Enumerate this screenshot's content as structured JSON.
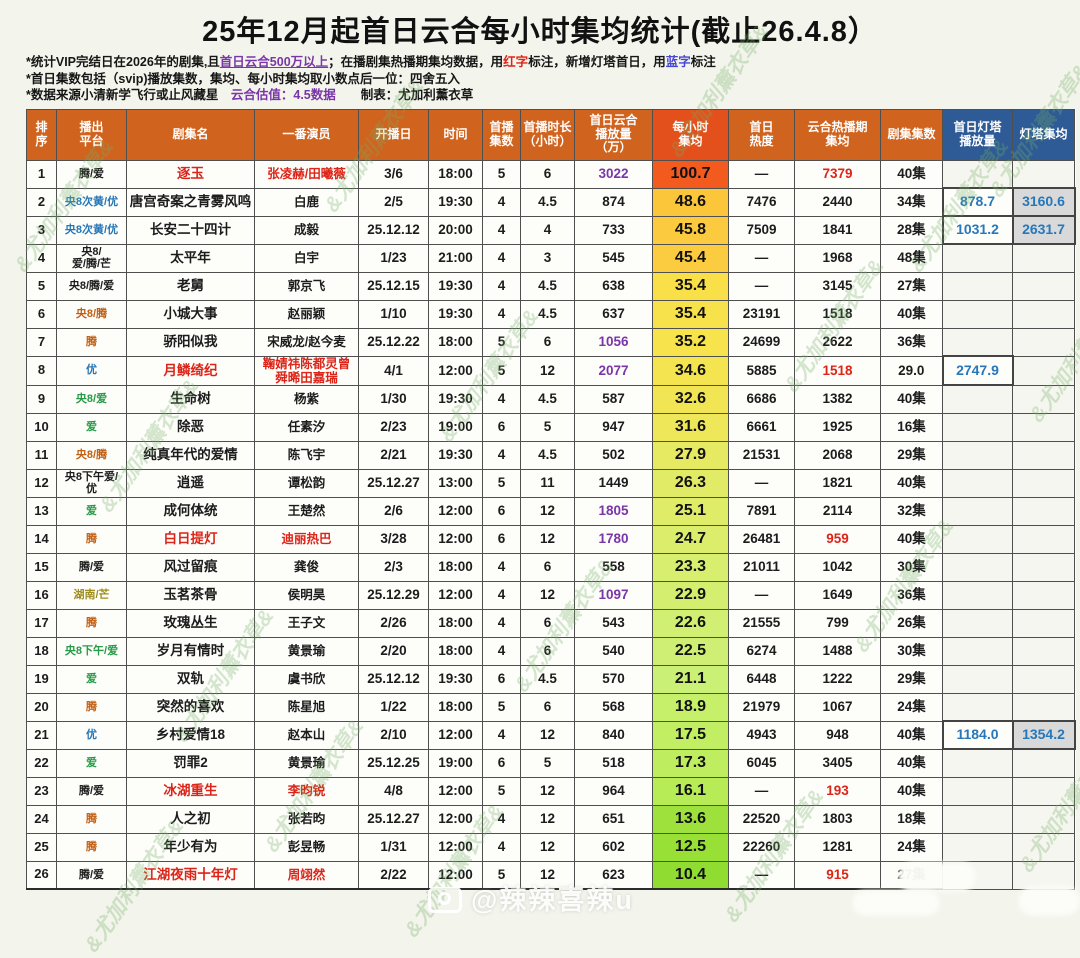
{
  "title": "25年12月起首日云合每小时集均统计(截止26.4.8）",
  "notes": [
    {
      "segments": [
        {
          "text": "*统计VIP完结日在2026年的剧集,且"
        },
        {
          "text": "首日云合500万以上",
          "color": "purple",
          "underline": true
        },
        {
          "text": "；在播剧集热播期集均数据，用"
        },
        {
          "text": "红字",
          "color": "red"
        },
        {
          "text": "标注，新增灯塔首日，用"
        },
        {
          "text": "蓝字",
          "color": "blue"
        },
        {
          "text": "标注"
        }
      ]
    },
    {
      "segments": [
        {
          "text": "*首日集数包括（svip)播放集数，集均、每小时集均取小数点后一位：四舍五入"
        }
      ]
    },
    {
      "segments": [
        {
          "text": "*数据来源小清新学飞行或止风藏星　"
        },
        {
          "text": "云合估值：4.5数据",
          "color": "purple"
        },
        {
          "text": "　　制表：尤加利薰衣草"
        }
      ]
    }
  ],
  "colors": {
    "header_orange": "#d0641f",
    "header_hot": "#e4501b",
    "header_blue": "#2e5b96",
    "red": "#dd2418",
    "purple": "#7a35a8",
    "blue_value": "#2777bb",
    "platform_black": "#1c1c1c",
    "platform_blue": "#2777b5",
    "platform_green": "#279a47",
    "platform_orange": "#c05f14",
    "platform_olive": "#9d8d1c",
    "gray_bg": "#d9d9d9"
  },
  "watermark": {
    "handle": "@辣辣喜辣u",
    "repeat_text": "&尤加利薰衣草&"
  },
  "table": {
    "headers": [
      {
        "label": "排\n序",
        "style": "orange"
      },
      {
        "label": "播出\n平台",
        "style": "orange"
      },
      {
        "label": "剧集名",
        "style": "orange"
      },
      {
        "label": "一番演员",
        "style": "orange"
      },
      {
        "label": "开播日",
        "style": "orange"
      },
      {
        "label": "时间",
        "style": "orange"
      },
      {
        "label": "首播\n集数",
        "style": "orange"
      },
      {
        "label": "首播时长\n（小时）",
        "style": "orange"
      },
      {
        "label": "首日云合\n播放量\n（万）",
        "style": "orange"
      },
      {
        "label": "每小时\n集均",
        "style": "hot"
      },
      {
        "label": "首日\n热度",
        "style": "orange"
      },
      {
        "label": "云合热播期\n集均",
        "style": "orange"
      },
      {
        "label": "剧集集数",
        "style": "orange"
      },
      {
        "label": "首日灯塔\n播放量",
        "style": "blue"
      },
      {
        "label": "灯塔集均",
        "style": "blue"
      }
    ],
    "rows": [
      {
        "rank": "1",
        "platform": "腾/爱",
        "platform_color": "black",
        "title": "逐玉",
        "title_red": true,
        "actor": "张凌赫/田曦薇",
        "actor_red": true,
        "premiere": "3/6",
        "time": "18:00",
        "first_eps": "5",
        "first_hours": "6",
        "cloud_plays": "3022",
        "plays_purple": true,
        "hourly_avg": "100.7",
        "hourly_bg": "#f35a1e",
        "day1_heat": "—",
        "hot_period_avg": "7379",
        "hot_avg_red": true,
        "total_eps": "40集",
        "beacon_plays": "",
        "beacon_avg": ""
      },
      {
        "rank": "2",
        "platform": "央8次黄/优",
        "platform_color": "blue",
        "title": "唐宫奇案之青雾风鸣",
        "title_red": false,
        "actor": "白鹿",
        "actor_red": false,
        "premiere": "2/5",
        "time": "19:30",
        "first_eps": "4",
        "first_hours": "4.5",
        "cloud_plays": "874",
        "plays_purple": false,
        "hourly_avg": "48.6",
        "hourly_bg": "#fcc63b",
        "day1_heat": "7476",
        "hot_period_avg": "2440",
        "hot_avg_red": false,
        "total_eps": "34集",
        "beacon_plays": "878.7",
        "beacon_avg": "3160.6"
      },
      {
        "rank": "3",
        "platform": "央8次黄/优",
        "platform_color": "blue",
        "title": "长安二十四计",
        "title_red": false,
        "actor": "成毅",
        "actor_red": false,
        "premiere": "25.12.12",
        "time": "20:00",
        "first_eps": "4",
        "first_hours": "4",
        "cloud_plays": "733",
        "plays_purple": false,
        "hourly_avg": "45.8",
        "hourly_bg": "#fcca3e",
        "day1_heat": "7509",
        "hot_period_avg": "1841",
        "hot_avg_red": false,
        "total_eps": "28集",
        "beacon_plays": "1031.2",
        "beacon_avg": "2631.7"
      },
      {
        "rank": "4",
        "platform": "央8/\n爱/腾/芒",
        "platform_color": "black",
        "title": "太平年",
        "title_red": false,
        "actor": "白宇",
        "actor_red": false,
        "premiere": "1/23",
        "time": "21:00",
        "first_eps": "4",
        "first_hours": "3",
        "cloud_plays": "545",
        "plays_purple": false,
        "hourly_avg": "45.4",
        "hourly_bg": "#fccc40",
        "day1_heat": "—",
        "hot_period_avg": "1968",
        "hot_avg_red": false,
        "total_eps": "48集",
        "beacon_plays": "",
        "beacon_avg": ""
      },
      {
        "rank": "5",
        "platform": "央8/腾/爱",
        "platform_color": "black",
        "title": "老舅",
        "title_red": false,
        "actor": "郭京飞",
        "actor_red": false,
        "premiere": "25.12.15",
        "time": "19:30",
        "first_eps": "4",
        "first_hours": "4.5",
        "cloud_plays": "638",
        "plays_purple": false,
        "hourly_avg": "35.4",
        "hourly_bg": "#f9e049",
        "day1_heat": "—",
        "hot_period_avg": "3145",
        "hot_avg_red": false,
        "total_eps": "27集",
        "beacon_plays": "",
        "beacon_avg": ""
      },
      {
        "rank": "6",
        "platform": "央8/腾",
        "platform_color": "orange",
        "title": "小城大事",
        "title_red": false,
        "actor": "赵丽颖",
        "actor_red": false,
        "premiere": "1/10",
        "time": "19:30",
        "first_eps": "4",
        "first_hours": "4.5",
        "cloud_plays": "637",
        "plays_purple": false,
        "hourly_avg": "35.4",
        "hourly_bg": "#f8e24b",
        "day1_heat": "23191",
        "hot_period_avg": "1518",
        "hot_avg_red": false,
        "total_eps": "40集",
        "beacon_plays": "",
        "beacon_avg": ""
      },
      {
        "rank": "7",
        "platform": "腾",
        "platform_color": "orange",
        "title": "骄阳似我",
        "title_red": false,
        "actor": "宋威龙/赵今麦",
        "actor_red": false,
        "premiere": "25.12.22",
        "time": "18:00",
        "first_eps": "5",
        "first_hours": "6",
        "cloud_plays": "1056",
        "plays_purple": true,
        "hourly_avg": "35.2",
        "hourly_bg": "#f7e34c",
        "day1_heat": "24699",
        "hot_period_avg": "2622",
        "hot_avg_red": false,
        "total_eps": "36集",
        "beacon_plays": "",
        "beacon_avg": ""
      },
      {
        "rank": "8",
        "platform": "优",
        "platform_color": "blue",
        "title": "月鳞绮纪",
        "title_red": true,
        "actor": "鞠婧祎陈都灵曾\n舜晞田嘉瑞",
        "actor_red": true,
        "premiere": "4/1",
        "time": "12:00",
        "first_eps": "5",
        "first_hours": "12",
        "cloud_plays": "2077",
        "plays_purple": true,
        "hourly_avg": "34.6",
        "hourly_bg": "#f4e450",
        "day1_heat": "5885",
        "hot_period_avg": "1518",
        "hot_avg_red": true,
        "total_eps": "29.0",
        "beacon_plays": "2747.9",
        "beacon_avg": ""
      },
      {
        "rank": "9",
        "platform": "央8/爱",
        "platform_color": "green",
        "title": "生命树",
        "title_red": false,
        "actor": "杨紫",
        "actor_red": false,
        "premiere": "1/30",
        "time": "19:30",
        "first_eps": "4",
        "first_hours": "4.5",
        "cloud_plays": "587",
        "plays_purple": false,
        "hourly_avg": "32.6",
        "hourly_bg": "#f1e554",
        "day1_heat": "6686",
        "hot_period_avg": "1382",
        "hot_avg_red": false,
        "total_eps": "40集",
        "beacon_plays": "",
        "beacon_avg": ""
      },
      {
        "rank": "10",
        "platform": "爱",
        "platform_color": "green",
        "title": "除恶",
        "title_red": false,
        "actor": "任素汐",
        "actor_red": false,
        "premiere": "2/23",
        "time": "19:00",
        "first_eps": "6",
        "first_hours": "5",
        "cloud_plays": "947",
        "plays_purple": false,
        "hourly_avg": "31.6",
        "hourly_bg": "#eee75a",
        "day1_heat": "6661",
        "hot_period_avg": "1925",
        "hot_avg_red": false,
        "total_eps": "16集",
        "beacon_plays": "",
        "beacon_avg": ""
      },
      {
        "rank": "11",
        "platform": "央8/腾",
        "platform_color": "orange",
        "title": "纯真年代的爱情",
        "title_red": false,
        "actor": "陈飞宇",
        "actor_red": false,
        "premiere": "2/21",
        "time": "19:30",
        "first_eps": "4",
        "first_hours": "4.5",
        "cloud_plays": "502",
        "plays_purple": false,
        "hourly_avg": "27.9",
        "hourly_bg": "#e6ea62",
        "day1_heat": "21531",
        "hot_period_avg": "2068",
        "hot_avg_red": false,
        "total_eps": "29集",
        "beacon_plays": "",
        "beacon_avg": ""
      },
      {
        "rank": "12",
        "platform": "央8下午爱/\n优",
        "platform_color": "black",
        "title": "逍遥",
        "title_red": false,
        "actor": "谭松韵",
        "actor_red": false,
        "premiere": "25.12.27",
        "time": "13:00",
        "first_eps": "5",
        "first_hours": "11",
        "cloud_plays": "1449",
        "plays_purple": false,
        "hourly_avg": "26.3",
        "hourly_bg": "#e2eb65",
        "day1_heat": "—",
        "hot_period_avg": "1821",
        "hot_avg_red": false,
        "total_eps": "40集",
        "beacon_plays": "",
        "beacon_avg": ""
      },
      {
        "rank": "13",
        "platform": "爱",
        "platform_color": "green",
        "title": "成何体统",
        "title_red": false,
        "actor": "王楚然",
        "actor_red": false,
        "premiere": "2/6",
        "time": "12:00",
        "first_eps": "6",
        "first_hours": "12",
        "cloud_plays": "1805",
        "plays_purple": true,
        "hourly_avg": "25.1",
        "hourly_bg": "#dfec68",
        "day1_heat": "7891",
        "hot_period_avg": "2114",
        "hot_avg_red": false,
        "total_eps": "32集",
        "beacon_plays": "",
        "beacon_avg": ""
      },
      {
        "rank": "14",
        "platform": "腾",
        "platform_color": "orange",
        "title": "白日提灯",
        "title_red": true,
        "actor": "迪丽热巴",
        "actor_red": true,
        "premiere": "3/28",
        "time": "12:00",
        "first_eps": "6",
        "first_hours": "12",
        "cloud_plays": "1780",
        "plays_purple": true,
        "hourly_avg": "24.7",
        "hourly_bg": "#dbed6b",
        "day1_heat": "26481",
        "hot_period_avg": "959",
        "hot_avg_red": true,
        "total_eps": "40集",
        "beacon_plays": "",
        "beacon_avg": ""
      },
      {
        "rank": "15",
        "platform": "腾/爱",
        "platform_color": "black",
        "title": "风过留痕",
        "title_red": false,
        "actor": "龚俊",
        "actor_red": false,
        "premiere": "2/3",
        "time": "18:00",
        "first_eps": "4",
        "first_hours": "6",
        "cloud_plays": "558",
        "plays_purple": false,
        "hourly_avg": "23.3",
        "hourly_bg": "#d7ee6e",
        "day1_heat": "21011",
        "hot_period_avg": "1042",
        "hot_avg_red": false,
        "total_eps": "30集",
        "beacon_plays": "",
        "beacon_avg": ""
      },
      {
        "rank": "16",
        "platform": "湖南/芒",
        "platform_color": "olive",
        "title": "玉茗茶骨",
        "title_red": false,
        "actor": "侯明昊",
        "actor_red": false,
        "premiere": "25.12.29",
        "time": "12:00",
        "first_eps": "4",
        "first_hours": "12",
        "cloud_plays": "1097",
        "plays_purple": true,
        "hourly_avg": "22.9",
        "hourly_bg": "#d4ee70",
        "day1_heat": "—",
        "hot_period_avg": "1649",
        "hot_avg_red": false,
        "total_eps": "36集",
        "beacon_plays": "",
        "beacon_avg": ""
      },
      {
        "rank": "17",
        "platform": "腾",
        "platform_color": "orange",
        "title": "玫瑰丛生",
        "title_red": false,
        "actor": "王子文",
        "actor_red": false,
        "premiere": "2/26",
        "time": "18:00",
        "first_eps": "4",
        "first_hours": "6",
        "cloud_plays": "543",
        "plays_purple": false,
        "hourly_avg": "22.6",
        "hourly_bg": "#d1ef72",
        "day1_heat": "21555",
        "hot_period_avg": "799",
        "hot_avg_red": false,
        "total_eps": "26集",
        "beacon_plays": "",
        "beacon_avg": ""
      },
      {
        "rank": "18",
        "platform": "央8下午/爱",
        "platform_color": "green",
        "title": "岁月有情时",
        "title_red": false,
        "actor": "黄景瑜",
        "actor_red": false,
        "premiere": "2/20",
        "time": "18:00",
        "first_eps": "4",
        "first_hours": "6",
        "cloud_plays": "540",
        "plays_purple": false,
        "hourly_avg": "22.5",
        "hourly_bg": "#ceef74",
        "day1_heat": "6274",
        "hot_period_avg": "1488",
        "hot_avg_red": false,
        "total_eps": "30集",
        "beacon_plays": "",
        "beacon_avg": ""
      },
      {
        "rank": "19",
        "platform": "爱",
        "platform_color": "green",
        "title": "双轨",
        "title_red": false,
        "actor": "虞书欣",
        "actor_red": false,
        "premiere": "25.12.12",
        "time": "19:30",
        "first_eps": "6",
        "first_hours": "4.5",
        "cloud_plays": "570",
        "plays_purple": false,
        "hourly_avg": "21.1",
        "hourly_bg": "#cbf076",
        "day1_heat": "6448",
        "hot_period_avg": "1222",
        "hot_avg_red": false,
        "total_eps": "29集",
        "beacon_plays": "",
        "beacon_avg": ""
      },
      {
        "rank": "20",
        "platform": "腾",
        "platform_color": "orange",
        "title": "突然的喜欢",
        "title_red": false,
        "actor": "陈星旭",
        "actor_red": false,
        "premiere": "1/22",
        "time": "18:00",
        "first_eps": "5",
        "first_hours": "6",
        "cloud_plays": "568",
        "plays_purple": false,
        "hourly_avg": "18.9",
        "hourly_bg": "#c6ef6a",
        "day1_heat": "21979",
        "hot_period_avg": "1067",
        "hot_avg_red": false,
        "total_eps": "24集",
        "beacon_plays": "",
        "beacon_avg": ""
      },
      {
        "rank": "21",
        "platform": "优",
        "platform_color": "blue",
        "title": "乡村爱情18",
        "title_red": false,
        "actor": "赵本山",
        "actor_red": false,
        "premiere": "2/10",
        "time": "12:00",
        "first_eps": "4",
        "first_hours": "12",
        "cloud_plays": "840",
        "plays_purple": false,
        "hourly_avg": "17.5",
        "hourly_bg": "#c2ee64",
        "day1_heat": "4943",
        "hot_period_avg": "948",
        "hot_avg_red": false,
        "total_eps": "40集",
        "beacon_plays": "1184.0",
        "beacon_avg": "1354.2"
      },
      {
        "rank": "22",
        "platform": "爱",
        "platform_color": "green",
        "title": "罚罪2",
        "title_red": false,
        "actor": "黄景瑜",
        "actor_red": false,
        "premiere": "25.12.25",
        "time": "19:00",
        "first_eps": "6",
        "first_hours": "5",
        "cloud_plays": "518",
        "plays_purple": false,
        "hourly_avg": "17.3",
        "hourly_bg": "#beee5f",
        "day1_heat": "6045",
        "hot_period_avg": "3405",
        "hot_avg_red": false,
        "total_eps": "40集",
        "beacon_plays": "",
        "beacon_avg": ""
      },
      {
        "rank": "23",
        "platform": "腾/爱",
        "platform_color": "black",
        "title": "冰湖重生",
        "title_red": true,
        "actor": "李昀锐",
        "actor_red": true,
        "premiere": "4/8",
        "time": "12:00",
        "first_eps": "5",
        "first_hours": "12",
        "cloud_plays": "964",
        "plays_purple": false,
        "hourly_avg": "16.1",
        "hourly_bg": "#b8ec57",
        "day1_heat": "—",
        "hot_period_avg": "193",
        "hot_avg_red": true,
        "total_eps": "40集",
        "beacon_plays": "",
        "beacon_avg": ""
      },
      {
        "rank": "24",
        "platform": "腾",
        "platform_color": "orange",
        "title": "人之初",
        "title_red": false,
        "actor": "张若昀",
        "actor_red": false,
        "premiere": "25.12.27",
        "time": "12:00",
        "first_eps": "4",
        "first_hours": "12",
        "cloud_plays": "651",
        "plays_purple": false,
        "hourly_avg": "13.6",
        "hourly_bg": "#9fe13c",
        "day1_heat": "22520",
        "hot_period_avg": "1803",
        "hot_avg_red": false,
        "total_eps": "18集",
        "beacon_plays": "",
        "beacon_avg": ""
      },
      {
        "rank": "25",
        "platform": "腾",
        "platform_color": "orange",
        "title": "年少有为",
        "title_red": false,
        "actor": "彭昱畅",
        "actor_red": false,
        "premiere": "1/31",
        "time": "12:00",
        "first_eps": "4",
        "first_hours": "12",
        "cloud_plays": "602",
        "plays_purple": false,
        "hourly_avg": "12.5",
        "hourly_bg": "#98df36",
        "day1_heat": "22260",
        "hot_period_avg": "1281",
        "hot_avg_red": false,
        "total_eps": "24集",
        "beacon_plays": "",
        "beacon_avg": ""
      },
      {
        "rank": "26",
        "platform": "腾/爱",
        "platform_color": "black",
        "title": "江湖夜雨十年灯",
        "title_red": true,
        "actor": "周翊然",
        "actor_red": true,
        "premiere": "2/22",
        "time": "12:00",
        "first_eps": "5",
        "first_hours": "12",
        "cloud_plays": "623",
        "plays_purple": false,
        "hourly_avg": "10.4",
        "hourly_bg": "#90dc31",
        "day1_heat": "—",
        "hot_period_avg": "915",
        "hot_avg_red": true,
        "total_eps": "27集",
        "beacon_plays": "",
        "beacon_avg": ""
      }
    ]
  }
}
